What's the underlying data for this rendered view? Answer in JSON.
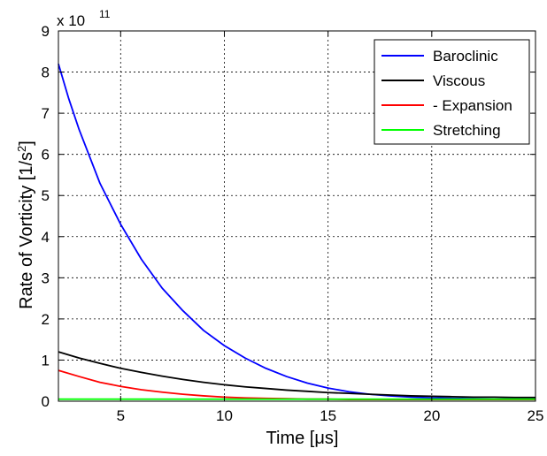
{
  "chart_data": {
    "type": "line",
    "xlabel": "Time [μs]",
    "ylabel_main": "Rate of Vorticity [1/s",
    "ylabel_sup": "2",
    "ylabel_tail": "]",
    "exponent_base": "x 10",
    "exponent_power": "11",
    "xlim": [
      2,
      25
    ],
    "ylim": [
      0,
      9
    ],
    "xticks": [
      5,
      10,
      15,
      20,
      25
    ],
    "yticks": [
      0,
      1,
      2,
      3,
      4,
      5,
      6,
      7,
      8,
      9
    ],
    "grid": true,
    "legend_position": "top-right",
    "series": [
      {
        "name": "Baroclinic",
        "color": "#0000ff",
        "x": [
          2,
          2.5,
          3,
          4,
          5,
          6,
          7,
          8,
          9,
          10,
          11,
          12,
          13,
          14,
          15,
          16,
          17,
          18,
          19,
          20,
          21,
          22,
          23,
          24,
          25
        ],
        "values": [
          8.2,
          7.35,
          6.6,
          5.3,
          4.3,
          3.45,
          2.75,
          2.2,
          1.72,
          1.35,
          1.05,
          0.8,
          0.6,
          0.44,
          0.32,
          0.23,
          0.17,
          0.13,
          0.1,
          0.08,
          0.07,
          0.06,
          0.05,
          0.05,
          0.05
        ]
      },
      {
        "name": "Viscous",
        "color": "#000000",
        "x": [
          2,
          3,
          4,
          5,
          6,
          7,
          8,
          9,
          10,
          11,
          12,
          13,
          14,
          15,
          16,
          17,
          18,
          19,
          20,
          21,
          22,
          23,
          24,
          25
        ],
        "values": [
          1.2,
          1.05,
          0.92,
          0.8,
          0.7,
          0.61,
          0.53,
          0.46,
          0.4,
          0.35,
          0.31,
          0.27,
          0.24,
          0.21,
          0.19,
          0.17,
          0.15,
          0.13,
          0.12,
          0.11,
          0.1,
          0.1,
          0.09,
          0.09
        ]
      },
      {
        "name": "- Expansion",
        "color": "#ff0000",
        "x": [
          2,
          3,
          4,
          5,
          6,
          7,
          8,
          9,
          10,
          11,
          12,
          13,
          14,
          15,
          16,
          17,
          18,
          19,
          20,
          21,
          22,
          23,
          24,
          25
        ],
        "values": [
          0.75,
          0.6,
          0.46,
          0.36,
          0.28,
          0.22,
          0.17,
          0.13,
          0.1,
          0.08,
          0.07,
          0.06,
          0.05,
          0.05,
          0.04,
          0.04,
          0.04,
          0.04,
          0.04,
          0.04,
          0.04,
          0.04,
          0.04,
          0.04
        ]
      },
      {
        "name": "Stretching",
        "color": "#00ff00",
        "x": [
          2,
          5,
          10,
          15,
          20,
          25
        ],
        "values": [
          0.05,
          0.05,
          0.05,
          0.05,
          0.05,
          0.05
        ]
      }
    ]
  }
}
